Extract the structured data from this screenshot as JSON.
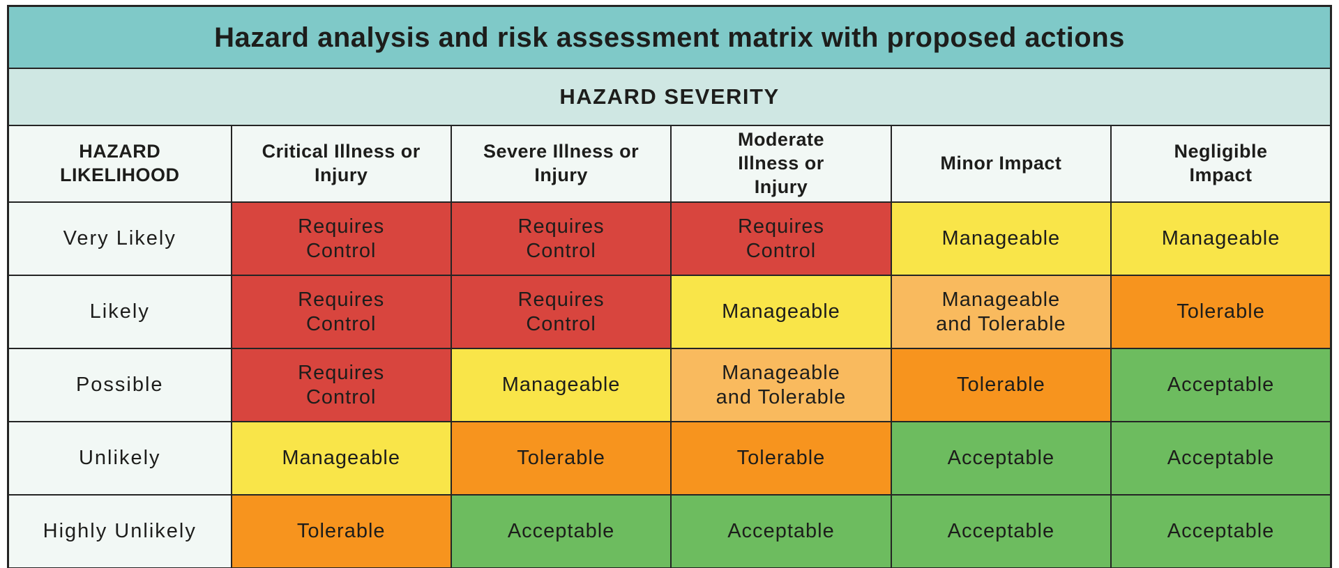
{
  "colors": {
    "title_bg": "#7fc9c8",
    "severity_bg": "#cfe7e3",
    "header_bg": "#f2f8f5",
    "requires_control": "#d8453e",
    "manageable": "#f9e549",
    "manageable_tolerable": "#f9ba5e",
    "tolerable": "#f7941e",
    "acceptable": "#6dbc5f",
    "border": "#242424",
    "text": "#1d1d1b"
  },
  "chart_data": {
    "type": "heatmap",
    "title": "Hazard analysis and risk assessment matrix with proposed actions",
    "x_header": "HAZARD SEVERITY",
    "y_header": "HAZARD LIKELIHOOD",
    "columns": [
      "Critical Illness or Injury",
      "Severe Illness or Injury",
      "Moderate Illness or Injury",
      "Minor Impact",
      "Negligible Impact"
    ],
    "rows": [
      {
        "likelihood": "Very Likely",
        "cells": [
          {
            "label": "Requires Control",
            "level": "requires_control"
          },
          {
            "label": "Requires Control",
            "level": "requires_control"
          },
          {
            "label": "Requires Control",
            "level": "requires_control"
          },
          {
            "label": "Manageable",
            "level": "manageable"
          },
          {
            "label": "Manageable",
            "level": "manageable"
          }
        ]
      },
      {
        "likelihood": "Likely",
        "cells": [
          {
            "label": "Requires Control",
            "level": "requires_control"
          },
          {
            "label": "Requires Control",
            "level": "requires_control"
          },
          {
            "label": "Manageable",
            "level": "manageable"
          },
          {
            "label": "Manageable and Tolerable",
            "level": "manageable_tolerable"
          },
          {
            "label": "Tolerable",
            "level": "tolerable"
          }
        ]
      },
      {
        "likelihood": "Possible",
        "cells": [
          {
            "label": "Requires Control",
            "level": "requires_control"
          },
          {
            "label": "Manageable",
            "level": "manageable"
          },
          {
            "label": "Manageable and Tolerable",
            "level": "manageable_tolerable"
          },
          {
            "label": "Tolerable",
            "level": "tolerable"
          },
          {
            "label": "Acceptable",
            "level": "acceptable"
          }
        ]
      },
      {
        "likelihood": "Unlikely",
        "cells": [
          {
            "label": "Manageable",
            "level": "manageable"
          },
          {
            "label": "Tolerable",
            "level": "tolerable"
          },
          {
            "label": "Tolerable",
            "level": "tolerable"
          },
          {
            "label": "Acceptable",
            "level": "acceptable"
          },
          {
            "label": "Acceptable",
            "level": "acceptable"
          }
        ]
      },
      {
        "likelihood": "Highly Unlikely",
        "cells": [
          {
            "label": "Tolerable",
            "level": "tolerable"
          },
          {
            "label": "Acceptable",
            "level": "acceptable"
          },
          {
            "label": "Acceptable",
            "level": "acceptable"
          },
          {
            "label": "Acceptable",
            "level": "acceptable"
          },
          {
            "label": "Acceptable",
            "level": "acceptable"
          }
        ]
      }
    ]
  }
}
